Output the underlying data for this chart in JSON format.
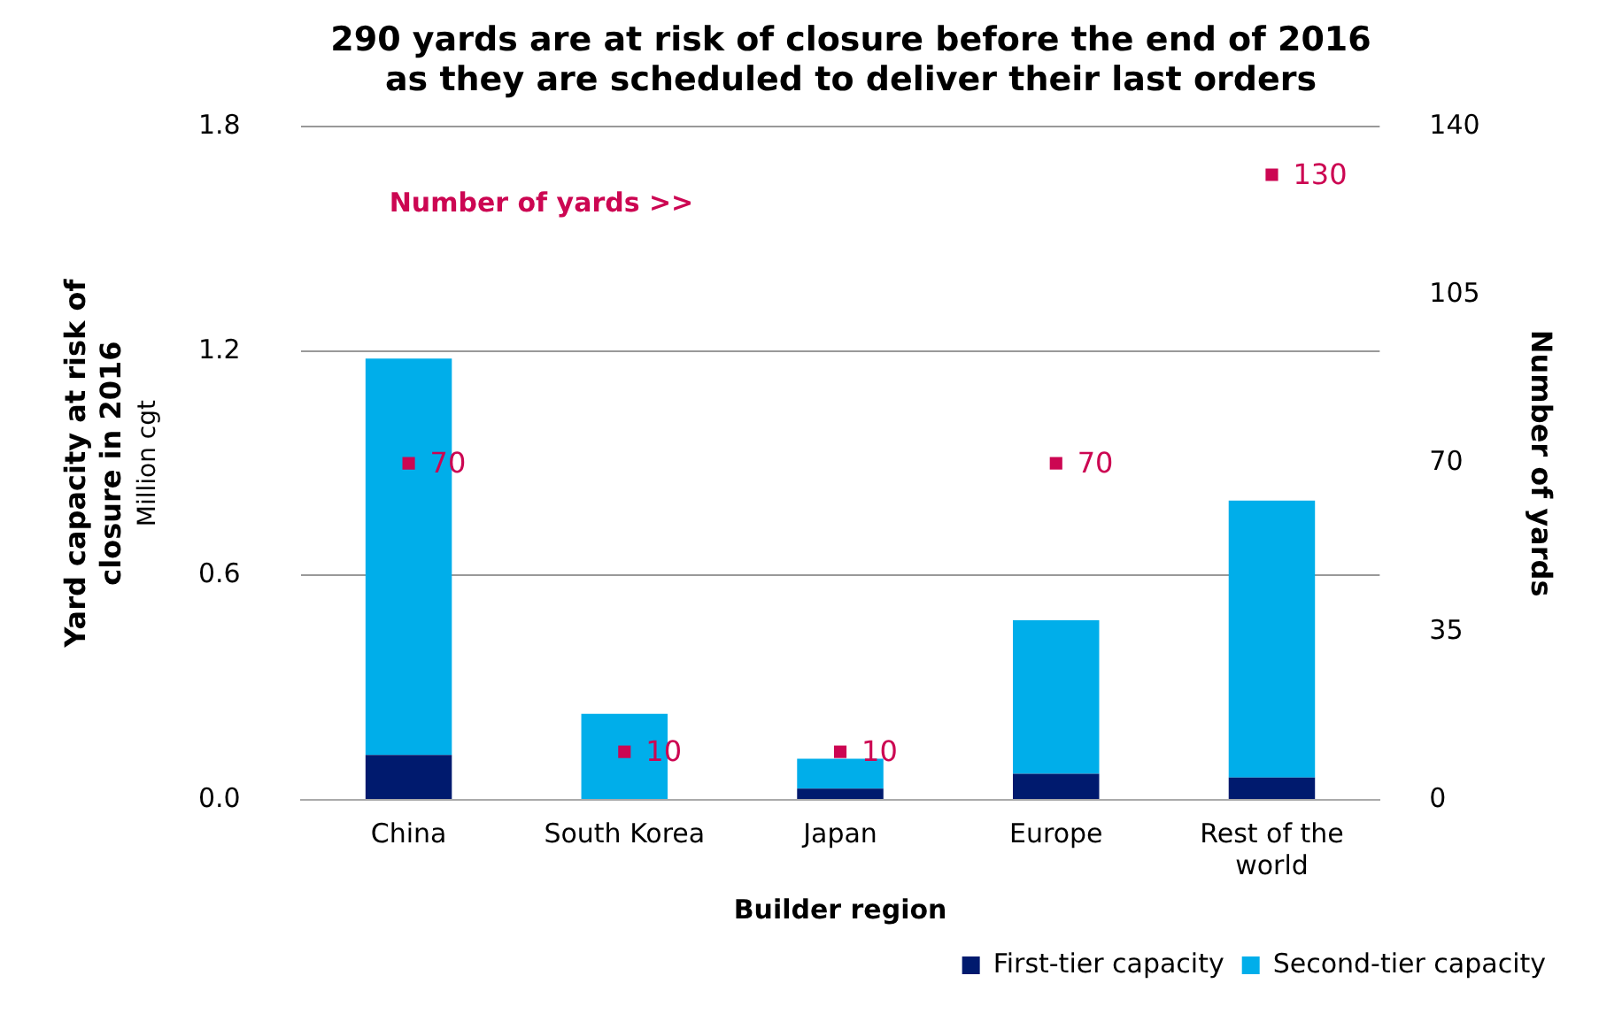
{
  "chart_data": {
    "type": "bar",
    "title": "290 yards are at risk of closure before the end of 2016\nas they are scheduled to deliver their last orders",
    "xlabel": "Builder region",
    "ylabel": "Yard capacity at risk of closure in 2016",
    "y2label": "Number of yards",
    "annotations": [
      "Million cgt",
      "Number of yards >>"
    ],
    "categories": [
      "China",
      "South Korea",
      "Japan",
      "Europe",
      "Rest of the world"
    ],
    "stacked": true,
    "series": [
      {
        "name": "First-tier capacity",
        "color": "#001a6e",
        "values": [
          0.12,
          0,
          0.03,
          0.07,
          0.06
        ]
      },
      {
        "name": "Second-tier capacity",
        "color": "#00aeea",
        "values": [
          1.06,
          0.23,
          0.08,
          0.41,
          0.74
        ]
      },
      {
        "type": "scatter",
        "axis": "y2",
        "marker": "square",
        "color": "#cc0652",
        "values": [
          70,
          10,
          10,
          70,
          130
        ],
        "value_labels": [
          "70",
          "10",
          "10",
          "70",
          "130"
        ]
      }
    ],
    "ylim": [
      0,
      1.8
    ],
    "yticks": [
      {
        "value": 0,
        "label": "0.0"
      },
      {
        "value": 0.6,
        "label": "0.6"
      },
      {
        "value": 1.2,
        "label": "1.2"
      },
      {
        "value": 1.8,
        "label": "1.8"
      }
    ],
    "y2lim": [
      0,
      140
    ],
    "y2ticks": [
      0,
      35,
      70,
      105,
      140
    ],
    "grid": "y",
    "legend": "bottom right"
  }
}
